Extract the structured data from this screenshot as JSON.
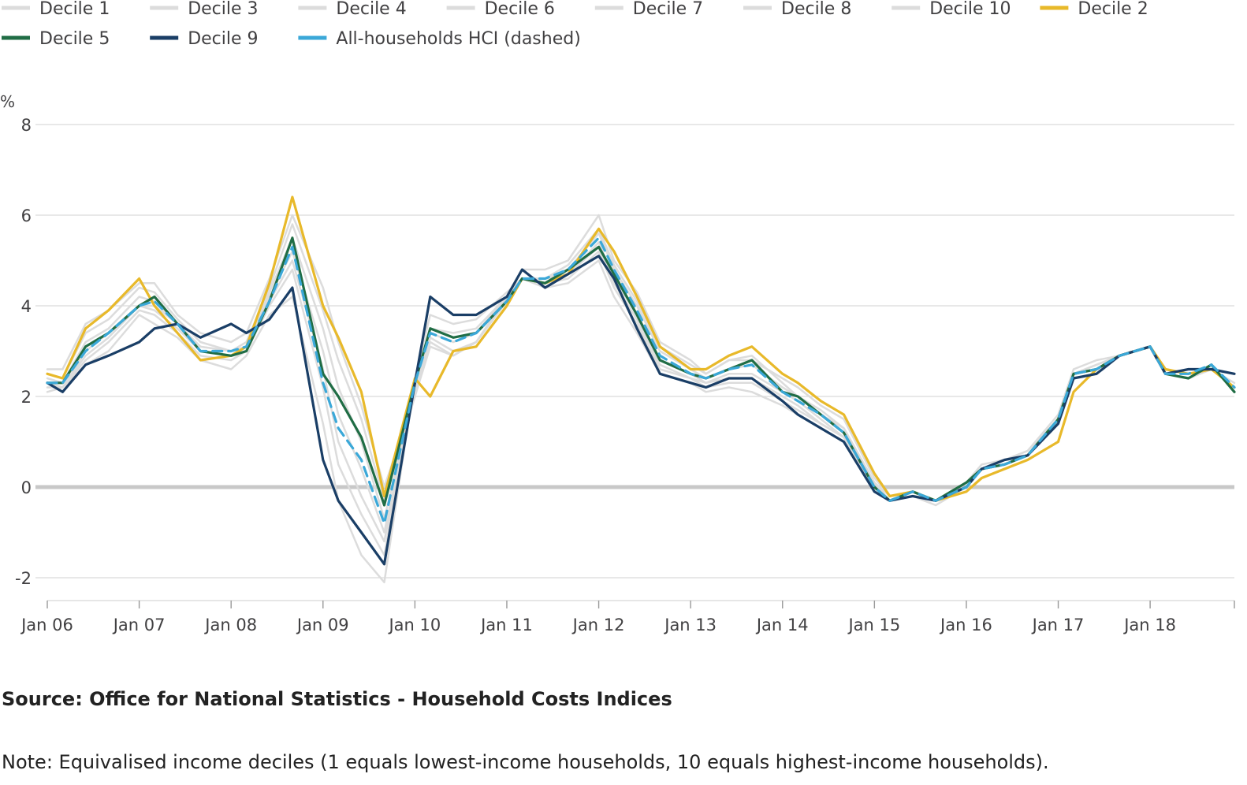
{
  "chart_data": {
    "type": "line",
    "y_unit": "%",
    "ylim": [
      -2,
      8
    ],
    "y_ticks": [
      "8",
      "6",
      "4",
      "2",
      "0",
      "-2"
    ],
    "x_ticks": [
      "Jan 06",
      "Jan 07",
      "Jan 08",
      "Jan 09",
      "Jan 10",
      "Jan 11",
      "Jan 12",
      "Jan 13",
      "Jan 14",
      "Jan 15",
      "Jan 16",
      "Jan 17",
      "Jan 18"
    ],
    "x_range": [
      "2006-01",
      "2018-12"
    ],
    "grid": true,
    "legend_position": "top",
    "legend": [
      "Decile 1",
      "Decile 3",
      "Decile 4",
      "Decile 6",
      "Decile 7",
      "Decile 8",
      "Decile 10",
      "Decile 2",
      "Decile 5",
      "Decile 9",
      "All-households HCI (dashed)"
    ],
    "colors": {
      "grey": "#dcdcdc",
      "decile_2": "#e8b92a",
      "decile_5": "#206d45",
      "decile_9": "#1a3e66",
      "all_households": "#3ba8d8",
      "zero_line": "#c8c8c8",
      "grid": "#d9d9d9"
    },
    "anchor_months": [
      "2006-01",
      "2006-03",
      "2006-06",
      "2006-09",
      "2007-01",
      "2007-03",
      "2007-06",
      "2007-09",
      "2008-01",
      "2008-03",
      "2008-06",
      "2008-09",
      "2009-01",
      "2009-03",
      "2009-06",
      "2009-09",
      "2010-01",
      "2010-03",
      "2010-06",
      "2010-09",
      "2011-01",
      "2011-03",
      "2011-06",
      "2011-09",
      "2012-01",
      "2012-03",
      "2012-06",
      "2012-09",
      "2013-01",
      "2013-03",
      "2013-06",
      "2013-09",
      "2014-01",
      "2014-03",
      "2014-06",
      "2014-09",
      "2015-01",
      "2015-03",
      "2015-06",
      "2015-09",
      "2016-01",
      "2016-03",
      "2016-06",
      "2016-09",
      "2017-01",
      "2017-03",
      "2017-06",
      "2017-09",
      "2018-01",
      "2018-03",
      "2018-06",
      "2018-09",
      "2018-12"
    ],
    "series": [
      {
        "name": "Decile 1",
        "style": "grey",
        "values": [
          2.6,
          2.6,
          3.6,
          3.9,
          4.5,
          4.5,
          3.8,
          3.4,
          3.2,
          3.4,
          4.6,
          6.0,
          4.4,
          3.2,
          1.8,
          0.0,
          2.0,
          3.3,
          3.0,
          3.2,
          4.2,
          4.8,
          4.8,
          5.0,
          6.0,
          5.0,
          4.3,
          3.2,
          2.8,
          2.5,
          2.8,
          2.8,
          2.4,
          2.2,
          1.8,
          1.5,
          0.2,
          -0.2,
          -0.1,
          -0.3,
          0.1,
          0.5,
          0.6,
          0.8,
          1.6,
          2.6,
          2.8,
          2.9,
          3.1,
          2.6,
          2.5,
          2.6,
          2.3
        ]
      },
      {
        "name": "Decile 3",
        "style": "grey",
        "values": [
          2.5,
          2.4,
          3.4,
          3.7,
          4.4,
          4.3,
          3.7,
          3.2,
          3.0,
          3.2,
          4.4,
          5.8,
          3.9,
          2.8,
          1.5,
          -0.3,
          2.0,
          3.1,
          2.9,
          3.2,
          4.1,
          4.6,
          4.6,
          4.9,
          5.7,
          4.9,
          4.1,
          3.1,
          2.7,
          2.5,
          2.8,
          2.9,
          2.3,
          2.0,
          1.7,
          1.3,
          0.1,
          -0.2,
          -0.1,
          -0.3,
          0.0,
          0.4,
          0.6,
          0.8,
          1.5,
          2.5,
          2.7,
          2.9,
          3.1,
          2.5,
          2.4,
          2.6,
          2.2
        ]
      },
      {
        "name": "Decile 4",
        "style": "grey",
        "values": [
          2.4,
          2.3,
          3.2,
          3.5,
          4.2,
          4.1,
          3.6,
          3.1,
          3.0,
          3.1,
          4.3,
          5.5,
          3.5,
          2.2,
          1.0,
          -0.7,
          2.1,
          3.2,
          2.9,
          3.2,
          4.1,
          4.6,
          4.6,
          4.8,
          5.6,
          4.8,
          4.0,
          3.0,
          2.6,
          2.4,
          2.6,
          2.7,
          2.2,
          2.0,
          1.6,
          1.3,
          0.1,
          -0.3,
          -0.2,
          -0.3,
          0.0,
          0.4,
          0.5,
          0.7,
          1.5,
          2.5,
          2.7,
          2.9,
          3.1,
          2.5,
          2.4,
          2.6,
          2.2
        ]
      },
      {
        "name": "Decile 6",
        "style": "grey",
        "values": [
          2.3,
          2.2,
          3.0,
          3.4,
          4.0,
          4.0,
          3.6,
          3.1,
          3.0,
          3.1,
          4.2,
          5.2,
          3.0,
          1.6,
          0.4,
          -1.0,
          2.2,
          3.4,
          3.2,
          3.4,
          4.2,
          4.6,
          4.6,
          4.7,
          5.4,
          4.6,
          3.8,
          2.8,
          2.5,
          2.3,
          2.5,
          2.5,
          2.1,
          1.9,
          1.5,
          1.1,
          0.0,
          -0.3,
          -0.2,
          -0.3,
          0.0,
          0.4,
          0.5,
          0.7,
          1.5,
          2.5,
          2.6,
          2.9,
          3.1,
          2.5,
          2.4,
          2.6,
          2.2
        ]
      },
      {
        "name": "Decile 7",
        "style": "grey",
        "values": [
          2.3,
          2.2,
          2.9,
          3.3,
          4.0,
          3.9,
          3.5,
          3.0,
          2.9,
          3.0,
          4.1,
          5.0,
          2.6,
          1.0,
          -0.2,
          -1.2,
          2.2,
          3.4,
          3.2,
          3.4,
          4.2,
          4.6,
          4.6,
          4.7,
          5.3,
          4.5,
          3.7,
          2.7,
          2.4,
          2.3,
          2.4,
          2.4,
          2.0,
          1.8,
          1.4,
          1.1,
          0.0,
          -0.3,
          -0.2,
          -0.3,
          0.0,
          0.4,
          0.5,
          0.7,
          1.5,
          2.5,
          2.6,
          2.9,
          3.1,
          2.5,
          2.4,
          2.6,
          2.2
        ]
      },
      {
        "name": "Decile 8",
        "style": "grey",
        "values": [
          2.2,
          2.2,
          2.8,
          3.2,
          3.9,
          3.8,
          3.4,
          2.9,
          2.8,
          3.0,
          4.0,
          4.8,
          2.2,
          0.5,
          -0.6,
          -1.5,
          2.3,
          3.5,
          3.4,
          3.5,
          4.2,
          4.6,
          4.5,
          4.6,
          5.2,
          4.4,
          3.6,
          2.6,
          2.4,
          2.2,
          2.3,
          2.3,
          1.9,
          1.7,
          1.4,
          1.1,
          0.0,
          -0.3,
          -0.2,
          -0.3,
          0.0,
          0.4,
          0.5,
          0.7,
          1.5,
          2.5,
          2.6,
          2.9,
          3.1,
          2.5,
          2.4,
          2.6,
          2.2
        ]
      },
      {
        "name": "Decile 10",
        "style": "grey",
        "values": [
          2.1,
          2.2,
          2.7,
          3.0,
          3.8,
          3.6,
          3.3,
          2.8,
          2.6,
          2.9,
          3.8,
          4.2,
          1.4,
          -0.3,
          -1.5,
          -2.1,
          2.4,
          3.8,
          3.6,
          3.7,
          4.3,
          4.6,
          4.4,
          4.5,
          5.0,
          4.2,
          3.4,
          2.5,
          2.3,
          2.1,
          2.2,
          2.1,
          1.8,
          1.6,
          1.3,
          1.0,
          -0.1,
          -0.3,
          -0.2,
          -0.4,
          0.0,
          0.4,
          0.6,
          0.7,
          1.5,
          2.5,
          2.6,
          2.9,
          3.1,
          2.5,
          2.4,
          2.6,
          2.2
        ]
      },
      {
        "name": "Decile 2",
        "style": "decile_2",
        "values": [
          2.5,
          2.4,
          3.5,
          3.9,
          4.6,
          4.0,
          3.4,
          2.8,
          2.9,
          3.1,
          4.5,
          6.4,
          4.0,
          3.3,
          2.1,
          -0.2,
          2.4,
          2.0,
          3.0,
          3.1,
          4.0,
          4.6,
          4.5,
          4.7,
          5.7,
          5.2,
          4.2,
          3.1,
          2.6,
          2.6,
          2.9,
          3.1,
          2.5,
          2.3,
          1.9,
          1.6,
          0.3,
          -0.2,
          -0.1,
          -0.3,
          -0.1,
          0.2,
          0.4,
          0.6,
          1.0,
          2.1,
          2.6,
          2.9,
          3.1,
          2.6,
          2.5,
          2.6,
          2.2
        ]
      },
      {
        "name": "Decile 5",
        "style": "decile_5",
        "values": [
          2.3,
          2.3,
          3.1,
          3.4,
          4.0,
          4.2,
          3.6,
          3.0,
          2.9,
          3.0,
          4.1,
          5.5,
          2.5,
          2.0,
          1.1,
          -0.4,
          2.3,
          3.5,
          3.3,
          3.4,
          4.1,
          4.6,
          4.5,
          4.8,
          5.3,
          4.7,
          3.8,
          2.8,
          2.5,
          2.4,
          2.6,
          2.8,
          2.1,
          2.0,
          1.6,
          1.2,
          0.0,
          -0.3,
          -0.1,
          -0.3,
          0.1,
          0.4,
          0.5,
          0.7,
          1.5,
          2.5,
          2.6,
          2.9,
          3.1,
          2.5,
          2.4,
          2.7,
          2.1
        ]
      },
      {
        "name": "Decile 9",
        "style": "decile_9",
        "values": [
          2.3,
          2.1,
          2.7,
          2.9,
          3.2,
          3.5,
          3.6,
          3.3,
          3.6,
          3.4,
          3.7,
          4.4,
          0.6,
          -0.3,
          -1.0,
          -1.7,
          2.3,
          4.2,
          3.8,
          3.8,
          4.2,
          4.8,
          4.4,
          4.7,
          5.1,
          4.6,
          3.5,
          2.5,
          2.3,
          2.2,
          2.4,
          2.4,
          1.9,
          1.6,
          1.3,
          1.0,
          -0.1,
          -0.3,
          -0.2,
          -0.3,
          0.0,
          0.4,
          0.6,
          0.7,
          1.4,
          2.4,
          2.5,
          2.9,
          3.1,
          2.5,
          2.6,
          2.6,
          2.5
        ]
      },
      {
        "name": "All-households HCI (dashed)",
        "style": "all_households",
        "dashed": true,
        "values": [
          2.3,
          2.3,
          3.0,
          3.4,
          4.0,
          4.1,
          3.6,
          3.0,
          3.0,
          3.1,
          4.1,
          5.3,
          2.3,
          1.3,
          0.6,
          -0.8,
          2.3,
          3.4,
          3.2,
          3.4,
          4.1,
          4.6,
          4.6,
          4.8,
          5.5,
          4.8,
          3.9,
          2.9,
          2.5,
          2.4,
          2.6,
          2.7,
          2.1,
          1.9,
          1.6,
          1.2,
          0.0,
          -0.3,
          -0.1,
          -0.3,
          0.0,
          0.4,
          0.5,
          0.7,
          1.5,
          2.5,
          2.6,
          2.9,
          3.1,
          2.5,
          2.5,
          2.7,
          2.2
        ]
      }
    ]
  },
  "footer": {
    "source": "Source: Office for National Statistics - Household Costs Indices",
    "note": "Note: Equivalised income deciles (1 equals lowest-income households, 10 equals highest-income households)."
  }
}
